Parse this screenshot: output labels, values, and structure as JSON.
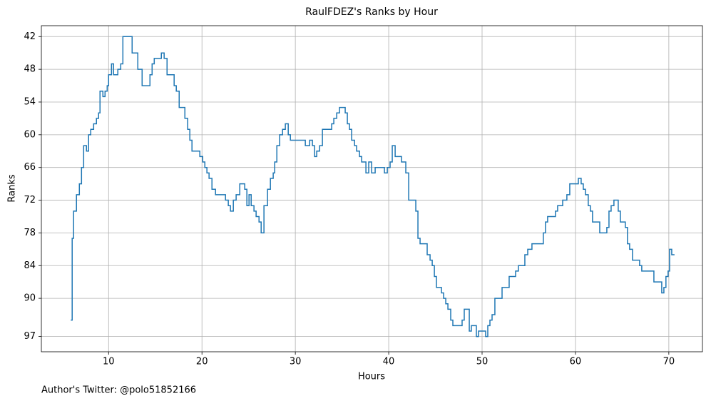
{
  "chart_data": {
    "type": "step",
    "title": "RaulFDEZ's Ranks by Hour",
    "xlabel": "Hours",
    "ylabel": "Ranks",
    "footnote": "Author's Twitter: @polo51852166",
    "color": "#1f77b4",
    "grid": true,
    "y_inverted": true,
    "xlim": [
      2.8,
      73.6
    ],
    "xticks": [
      10,
      20,
      30,
      40,
      50,
      60,
      70
    ],
    "ylim": [
      40.0,
      99.8
    ],
    "yticks": [
      42,
      48,
      54,
      60,
      66,
      72,
      78,
      84,
      90,
      97
    ],
    "x": [
      5.95,
      6.1,
      6.25,
      6.56,
      6.87,
      7.1,
      7.33,
      7.63,
      7.86,
      8.09,
      8.4,
      8.7,
      8.93,
      9.08,
      9.39,
      9.62,
      9.85,
      10.0,
      10.31,
      10.53,
      10.99,
      11.3,
      11.53,
      12.52,
      13.13,
      13.59,
      14.43,
      14.66,
      14.89,
      15.65,
      15.95,
      16.26,
      17.02,
      17.25,
      17.56,
      18.17,
      18.47,
      18.7,
      18.93,
      19.77,
      20.08,
      20.31,
      20.53,
      20.76,
      21.07,
      21.45,
      22.52,
      22.82,
      23.05,
      23.36,
      23.66,
      24.05,
      24.58,
      24.81,
      25.04,
      25.27,
      25.57,
      25.8,
      26.11,
      26.34,
      26.64,
      27.02,
      27.33,
      27.63,
      27.79,
      28.02,
      28.32,
      28.63,
      28.93,
      29.24,
      29.47,
      31.07,
      31.53,
      31.83,
      32.06,
      32.29,
      32.6,
      32.9,
      33.89,
      34.12,
      34.43,
      34.73,
      35.34,
      35.57,
      35.8,
      36.03,
      36.34,
      36.56,
      36.87,
      37.1,
      37.56,
      37.86,
      38.17,
      38.55,
      39.54,
      39.85,
      40.15,
      40.38,
      40.69,
      41.37,
      41.83,
      42.14,
      42.9,
      43.13,
      43.36,
      44.12,
      44.43,
      44.66,
      44.89,
      45.11,
      45.65,
      45.88,
      46.11,
      46.34,
      46.64,
      46.87,
      47.86,
      48.09,
      48.63,
      48.85,
      49.39,
      49.62,
      50.38,
      50.61,
      50.84,
      51.07,
      51.37,
      52.14,
      52.9,
      53.59,
      53.89,
      54.58,
      54.89,
      55.34,
      56.56,
      56.79,
      57.02,
      57.86,
      58.09,
      58.63,
      59.08,
      59.39,
      60.31,
      60.61,
      60.84,
      61.07,
      61.37,
      61.6,
      61.83,
      62.6,
      63.36,
      63.59,
      63.82,
      64.12,
      64.58,
      64.81,
      65.34,
      65.57,
      65.8,
      66.11,
      66.87,
      67.1,
      68.4,
      69.24,
      69.47,
      69.69,
      69.92,
      70.08,
      70.31,
      70.61
    ],
    "values": [
      94,
      79,
      74,
      71,
      69,
      66,
      62,
      63,
      60,
      59,
      58,
      57,
      56,
      52,
      53,
      52,
      51,
      49,
      47,
      49,
      48,
      47,
      42,
      45,
      48,
      51,
      49,
      47,
      46,
      45,
      46,
      49,
      51,
      52,
      55,
      57,
      59,
      61,
      63,
      64,
      65,
      66,
      67,
      68,
      70,
      71,
      72,
      73,
      74,
      72,
      71,
      69,
      70,
      73,
      71,
      73,
      74,
      75,
      76,
      78,
      73,
      70,
      68,
      67,
      65,
      62,
      60,
      59,
      58,
      60,
      61,
      62,
      61,
      62,
      64,
      63,
      62,
      59,
      58,
      57,
      56,
      55,
      56,
      58,
      59,
      61,
      62,
      63,
      64,
      65,
      67,
      65,
      67,
      66,
      67,
      66,
      65,
      62,
      64,
      65,
      67,
      72,
      74,
      79,
      80,
      82,
      83,
      84,
      86,
      88,
      89,
      90,
      91,
      92,
      94,
      95,
      94,
      92,
      96,
      95,
      97,
      96,
      97,
      95,
      94,
      93,
      90,
      88,
      86,
      85,
      84,
      82,
      81,
      80,
      78,
      76,
      75,
      74,
      73,
      72,
      71,
      69,
      68,
      69,
      70,
      71,
      73,
      74,
      76,
      78,
      77,
      74,
      73,
      72,
      74,
      76,
      77,
      80,
      81,
      83,
      84,
      85,
      87,
      89,
      88,
      86,
      85,
      81,
      82,
      82
    ]
  }
}
